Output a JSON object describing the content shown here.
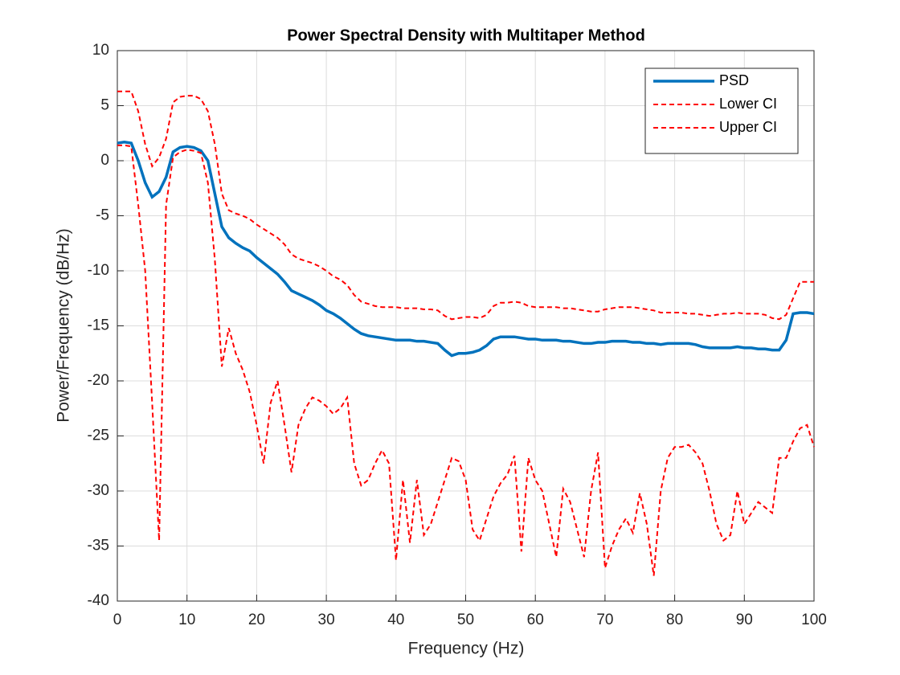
{
  "chart_data": {
    "type": "line",
    "title": "Power Spectral Density with Multitaper Method",
    "xlabel": "Frequency (Hz)",
    "ylabel": "Power/Frequency (dB/Hz)",
    "x": [
      0,
      1,
      2,
      3,
      4,
      5,
      6,
      7,
      8,
      9,
      10,
      11,
      12,
      13,
      14,
      15,
      16,
      17,
      18,
      19,
      20,
      21,
      22,
      23,
      24,
      25,
      26,
      27,
      28,
      29,
      30,
      31,
      32,
      33,
      34,
      35,
      36,
      37,
      38,
      39,
      40,
      41,
      42,
      43,
      44,
      45,
      46,
      47,
      48,
      49,
      50,
      51,
      52,
      53,
      54,
      55,
      56,
      57,
      58,
      59,
      60,
      61,
      62,
      63,
      64,
      65,
      66,
      67,
      68,
      69,
      70,
      71,
      72,
      73,
      74,
      75,
      76,
      77,
      78,
      79,
      80,
      81,
      82,
      83,
      84,
      85,
      86,
      87,
      88,
      89,
      90,
      91,
      92,
      93,
      94,
      95,
      96,
      97,
      98,
      99,
      100
    ],
    "series": [
      {
        "name": "PSD",
        "color": "#0072bd",
        "dashed": false,
        "values": [
          1.6,
          1.7,
          1.6,
          0,
          -2,
          -3.3,
          -2.8,
          -1.5,
          0.8,
          1.2,
          1.3,
          1.2,
          0.9,
          0,
          -3,
          -6,
          -7,
          -7.5,
          -7.9,
          -8.2,
          -8.8,
          -9.3,
          -9.8,
          -10.3,
          -11,
          -11.8,
          -12.1,
          -12.4,
          -12.7,
          -13.1,
          -13.6,
          -13.9,
          -14.3,
          -14.8,
          -15.3,
          -15.7,
          -15.9,
          -16,
          -16.1,
          -16.2,
          -16.3,
          -16.3,
          -16.3,
          -16.4,
          -16.4,
          -16.5,
          -16.6,
          -17.2,
          -17.7,
          -17.5,
          -17.5,
          -17.4,
          -17.2,
          -16.8,
          -16.2,
          -16,
          -16,
          -16,
          -16.1,
          -16.2,
          -16.2,
          -16.3,
          -16.3,
          -16.3,
          -16.4,
          -16.4,
          -16.5,
          -16.6,
          -16.6,
          -16.5,
          -16.5,
          -16.4,
          -16.4,
          -16.4,
          -16.5,
          -16.5,
          -16.6,
          -16.6,
          -16.7,
          -16.6,
          -16.6,
          -16.6,
          -16.6,
          -16.7,
          -16.9,
          -17,
          -17,
          -17,
          -17,
          -16.9,
          -17,
          -17,
          -17.1,
          -17.1,
          -17.2,
          -17.2,
          -16.3,
          -13.9,
          -13.8,
          -13.8,
          -13.9
        ]
      },
      {
        "name": "Lower CI",
        "color": "#ff0000",
        "dashed": true,
        "values": [
          6.3,
          6.3,
          6.3,
          4.5,
          1.5,
          -0.5,
          0.3,
          2,
          5.3,
          5.8,
          5.9,
          5.9,
          5.6,
          4.5,
          1.5,
          -3,
          -4.5,
          -4.8,
          -5,
          -5.3,
          -5.8,
          -6.2,
          -6.6,
          -7,
          -7.6,
          -8.5,
          -8.9,
          -9.1,
          -9.3,
          -9.6,
          -10,
          -10.5,
          -10.8,
          -11.3,
          -12.2,
          -12.8,
          -13,
          -13.2,
          -13.3,
          -13.3,
          -13.3,
          -13.4,
          -13.4,
          -13.4,
          -13.5,
          -13.5,
          -13.6,
          -14.1,
          -14.4,
          -14.3,
          -14.2,
          -14.2,
          -14.3,
          -14,
          -13.2,
          -12.9,
          -12.9,
          -12.8,
          -12.9,
          -13.2,
          -13.3,
          -13.3,
          -13.3,
          -13.3,
          -13.4,
          -13.4,
          -13.5,
          -13.6,
          -13.7,
          -13.7,
          -13.5,
          -13.4,
          -13.3,
          -13.3,
          -13.3,
          -13.4,
          -13.5,
          -13.6,
          -13.8,
          -13.8,
          -13.8,
          -13.8,
          -13.9,
          -13.9,
          -14,
          -14.1,
          -14,
          -13.9,
          -13.9,
          -13.8,
          -13.9,
          -13.9,
          -13.9,
          -14,
          -14.3,
          -14.4,
          -14,
          -12.5,
          -11,
          -11,
          -11
        ]
      },
      {
        "name": "Upper CI",
        "color": "#ff0000",
        "dashed": true,
        "values": [
          1.4,
          1.4,
          1.3,
          -4,
          -10,
          -22,
          -34.5,
          -4,
          0.3,
          0.8,
          1,
          0.9,
          0.7,
          -2,
          -9,
          -18.7,
          -15.2,
          -17.5,
          -19,
          -21,
          -24,
          -27.5,
          -22,
          -20,
          -24,
          -28.3,
          -24,
          -22.5,
          -21.5,
          -21.8,
          -22.3,
          -23,
          -22.5,
          -21.5,
          -27.5,
          -29.5,
          -29,
          -27.5,
          -26.3,
          -27.5,
          -36.3,
          -29,
          -34.7,
          -29,
          -34,
          -33,
          -31,
          -29,
          -27,
          -27.3,
          -29,
          -33.5,
          -34.5,
          -32.5,
          -30.5,
          -29.3,
          -28.5,
          -26.8,
          -35.5,
          -27,
          -29,
          -30,
          -33,
          -36,
          -29.8,
          -31,
          -33.5,
          -36,
          -30,
          -26.5,
          -37,
          -35,
          -33.5,
          -32.5,
          -33.8,
          -30.2,
          -33,
          -37.7,
          -30,
          -27,
          -26,
          -26,
          -25.8,
          -26.5,
          -27.5,
          -30,
          -33,
          -34.5,
          -34,
          -30,
          -33,
          -32,
          -31,
          -31.5,
          -32,
          -27,
          -27,
          -25.5,
          -24.3,
          -24,
          -26
        ]
      }
    ],
    "xlim": [
      0,
      100
    ],
    "xticks": [
      0,
      10,
      20,
      30,
      40,
      50,
      60,
      70,
      80,
      90,
      100
    ],
    "ylim": [
      -40,
      10
    ],
    "yticks": [
      -40,
      -35,
      -30,
      -25,
      -20,
      -15,
      -10,
      -5,
      0,
      5,
      10
    ],
    "grid": true,
    "legend": "northeast"
  }
}
